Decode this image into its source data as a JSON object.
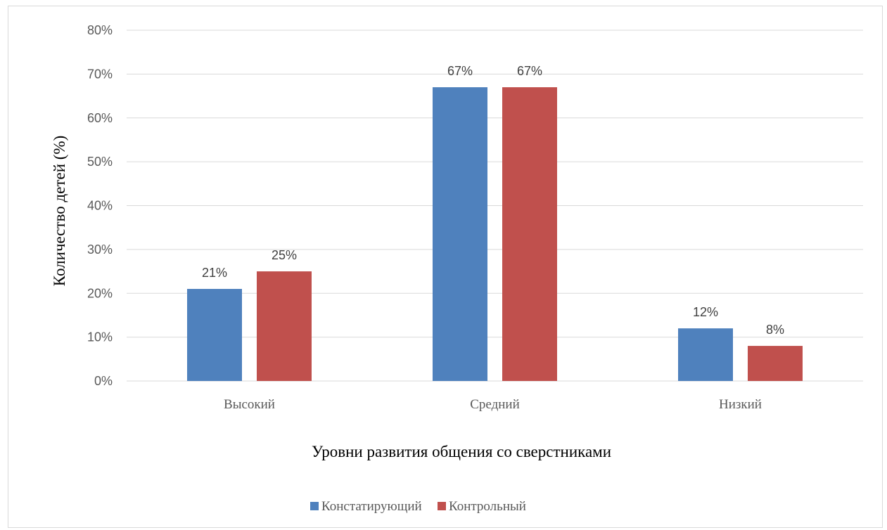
{
  "chart_data": {
    "type": "bar",
    "categories": [
      "Высокий",
      "Средний",
      "Низкий"
    ],
    "series": [
      {
        "name": "Констатирующий",
        "values": [
          21,
          67,
          12
        ],
        "labels": [
          "21%",
          "67%",
          "12%"
        ],
        "color": "#4f81bd"
      },
      {
        "name": "Контрольный",
        "values": [
          25,
          67,
          8
        ],
        "labels": [
          "25%",
          "67%",
          "8%"
        ],
        "color": "#c0504d"
      }
    ],
    "xlabel": "Уровни развития общения со сверстниками",
    "ylabel": "Количество детей (%)",
    "ylim": [
      0,
      80
    ],
    "yticks": [
      0,
      10,
      20,
      30,
      40,
      50,
      60,
      70,
      80
    ],
    "ytick_labels": [
      "0%",
      "10%",
      "20%",
      "30%",
      "40%",
      "50%",
      "60%",
      "70%",
      "80%"
    ],
    "grid": true,
    "legend_position": "bottom",
    "gridline_color": "#d9d9d9"
  }
}
